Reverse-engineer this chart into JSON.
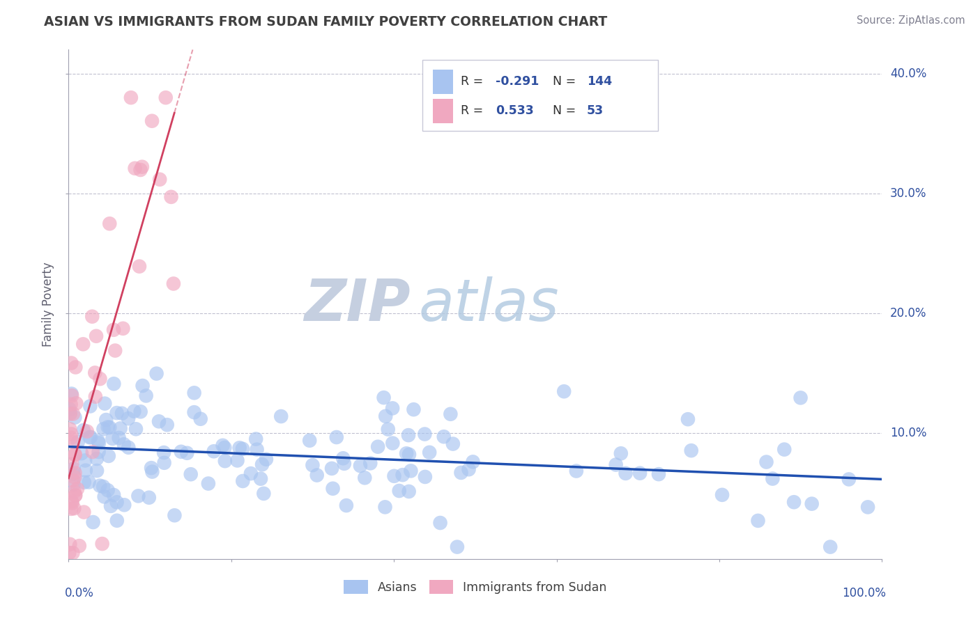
{
  "title": "ASIAN VS IMMIGRANTS FROM SUDAN FAMILY POVERTY CORRELATION CHART",
  "source": "Source: ZipAtlas.com",
  "ylabel": "Family Poverty",
  "yticks": [
    0.1,
    0.2,
    0.3,
    0.4
  ],
  "ytick_labels": [
    "10.0%",
    "20.0%",
    "30.0%",
    "40.0%"
  ],
  "xlim": [
    0.0,
    1.0
  ],
  "ylim": [
    -0.005,
    0.42
  ],
  "legend_label1": "Asians",
  "legend_label2": "Immigrants from Sudan",
  "asian_color": "#a8c4f0",
  "sudan_color": "#f0a8c0",
  "asian_line_color": "#2050b0",
  "sudan_line_color": "#d04060",
  "watermark_zip": "ZIP",
  "watermark_atlas": "atlas",
  "watermark_color_zip": "#c0cce0",
  "watermark_color_atlas": "#b8cce0",
  "asian_R": -0.291,
  "sudan_R": 0.533,
  "asian_N": 144,
  "sudan_N": 53,
  "background_color": "#ffffff",
  "grid_color": "#c0c0d0",
  "title_color": "#404040",
  "axis_label_color": "#3050a0",
  "legend_text_color": "#3050a0",
  "legend_r1_val": "-0.291",
  "legend_n1_val": "144",
  "legend_r2_val": "0.533",
  "legend_n2_val": "53"
}
